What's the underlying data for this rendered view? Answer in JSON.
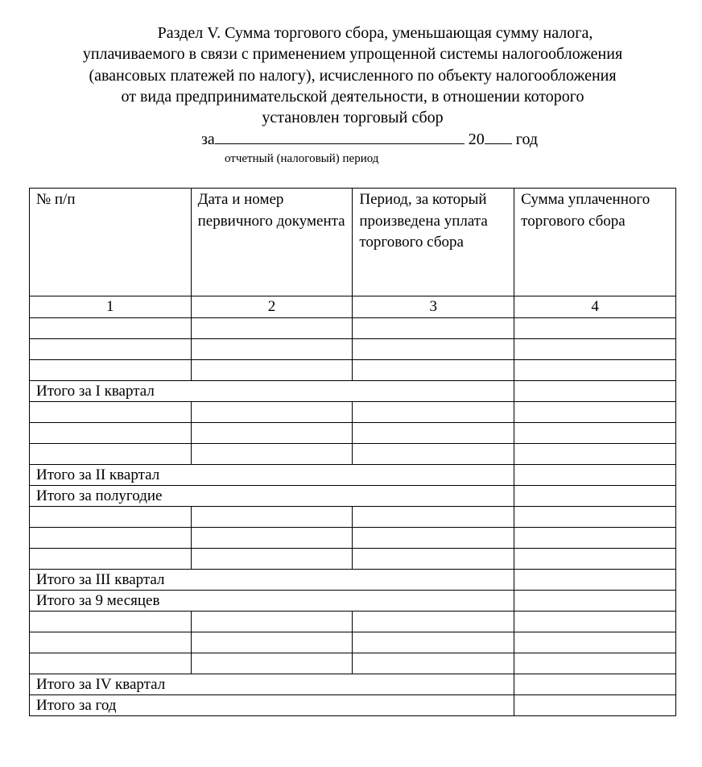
{
  "title_lines": [
    "Раздел V. Сумма торгового сбора, уменьшающая сумму налога,",
    "уплачиваемого в связи с применением упрощенной системы налогообложения",
    "(авансовых платежей по налогу),  исчисленного по объекту налогообложения",
    "от вида предпринимательской деятельности, в отношении которого",
    "установлен торговый сбор"
  ],
  "period": {
    "prefix": "за",
    "year_prefix": "20",
    "suffix": "год",
    "hint": "отчетный (налоговый) период"
  },
  "table": {
    "headers": [
      "№ п/п",
      "Дата и номер первичного документа",
      "Период, за который произведена уплата торгового сбора",
      "Сумма уплаченного торгового сбора"
    ],
    "column_numbers": [
      "1",
      "2",
      "3",
      "4"
    ],
    "rows": [
      {
        "type": "empty"
      },
      {
        "type": "empty"
      },
      {
        "type": "empty"
      },
      {
        "type": "total",
        "label": "Итого за I квартал"
      },
      {
        "type": "empty"
      },
      {
        "type": "empty"
      },
      {
        "type": "empty"
      },
      {
        "type": "total",
        "label": "Итого за II квартал"
      },
      {
        "type": "total",
        "label": "Итого за полугодие"
      },
      {
        "type": "empty"
      },
      {
        "type": "empty"
      },
      {
        "type": "empty"
      },
      {
        "type": "total",
        "label": "Итого за III квартал"
      },
      {
        "type": "total",
        "label": "Итого за 9 месяцев"
      },
      {
        "type": "empty"
      },
      {
        "type": "empty"
      },
      {
        "type": "empty"
      },
      {
        "type": "total",
        "label": "Итого за IV квартал"
      },
      {
        "type": "total",
        "label": "Итого за год"
      }
    ]
  }
}
